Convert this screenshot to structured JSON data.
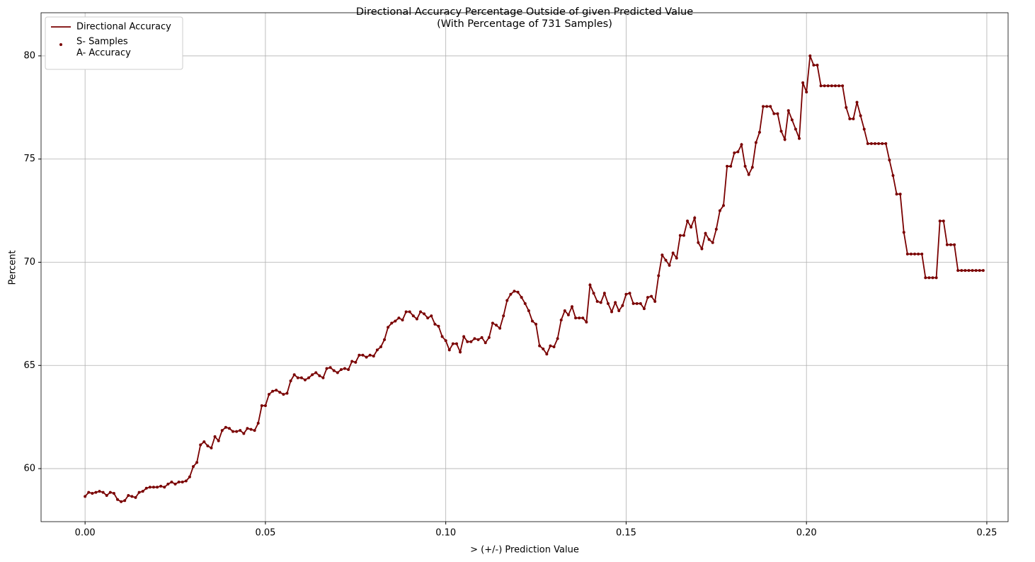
{
  "chart_data": {
    "type": "line",
    "title": "Directional Accuracy Percentage Outside of given Predicted Value",
    "subtitle": "(With Percentage of 731 Samples)",
    "x_label": "> (+/-) Prediction Value",
    "y_label": "Percent",
    "xlim": [
      -0.0122,
      0.2559
    ],
    "ylim": [
      57.43,
      82.09
    ],
    "xticks": [
      {
        "value": 0,
        "label": "0.00"
      },
      {
        "value": 0.05,
        "label": "0.05"
      },
      {
        "value": 0.1,
        "label": "0.10"
      },
      {
        "value": 0.15,
        "label": "0.15"
      },
      {
        "value": 0.2,
        "label": "0.20"
      },
      {
        "value": 0.25,
        "label": "0.25"
      }
    ],
    "yticks": [
      60,
      65,
      70,
      75,
      80
    ],
    "grid": true,
    "legend": "upper-left",
    "marker_legend": [
      "S- Samples",
      "A- Accuracy"
    ],
    "x": [
      0,
      0.001,
      0.002,
      0.003,
      0.004,
      0.005,
      0.006,
      0.007,
      0.008,
      0.009,
      0.01,
      0.011,
      0.012,
      0.013,
      0.014,
      0.015,
      0.016,
      0.017,
      0.018,
      0.019,
      0.02,
      0.021,
      0.022,
      0.023,
      0.024,
      0.025,
      0.026,
      0.027,
      0.028,
      0.029,
      0.03,
      0.031,
      0.032,
      0.033,
      0.034,
      0.035,
      0.036,
      0.037,
      0.038,
      0.039,
      0.04,
      0.041,
      0.042,
      0.043,
      0.044,
      0.045,
      0.046,
      0.047,
      0.048,
      0.049,
      0.05,
      0.051,
      0.052,
      0.053,
      0.054,
      0.055,
      0.056,
      0.057,
      0.058,
      0.059,
      0.06,
      0.061,
      0.062,
      0.063,
      0.064,
      0.065,
      0.066,
      0.067,
      0.068,
      0.069,
      0.07,
      0.071,
      0.072,
      0.073,
      0.074,
      0.075,
      0.076,
      0.077,
      0.078,
      0.079,
      0.08,
      0.081,
      0.082,
      0.083,
      0.084,
      0.085,
      0.086,
      0.087,
      0.088,
      0.089,
      0.09,
      0.091,
      0.092,
      0.093,
      0.094,
      0.095,
      0.096,
      0.097,
      0.098,
      0.099,
      0.1,
      0.101,
      0.102,
      0.103,
      0.104,
      0.105,
      0.106,
      0.107,
      0.108,
      0.109,
      0.11,
      0.111,
      0.112,
      0.113,
      0.114,
      0.115,
      0.116,
      0.117,
      0.118,
      0.119,
      0.12,
      0.121,
      0.122,
      0.123,
      0.124,
      0.125,
      0.126,
      0.127,
      0.128,
      0.129,
      0.13,
      0.131,
      0.132,
      0.133,
      0.134,
      0.135,
      0.136,
      0.137,
      0.138,
      0.139,
      0.14,
      0.141,
      0.142,
      0.143,
      0.144,
      0.145,
      0.146,
      0.147,
      0.148,
      0.149,
      0.15,
      0.151,
      0.152,
      0.153,
      0.154,
      0.155,
      0.156,
      0.157,
      0.158,
      0.159,
      0.16,
      0.161,
      0.162,
      0.163,
      0.164,
      0.165,
      0.166,
      0.167,
      0.168,
      0.169,
      0.17,
      0.171,
      0.172,
      0.173,
      0.174,
      0.175,
      0.176,
      0.177,
      0.178,
      0.179,
      0.18,
      0.181,
      0.182,
      0.183,
      0.184,
      0.185,
      0.186,
      0.187,
      0.188,
      0.189,
      0.19,
      0.191,
      0.192,
      0.193,
      0.194,
      0.195,
      0.196,
      0.197,
      0.198,
      0.199,
      0.2,
      0.201,
      0.202,
      0.203,
      0.204,
      0.205,
      0.206,
      0.207,
      0.208,
      0.209,
      0.21,
      0.211,
      0.212,
      0.213,
      0.214,
      0.215,
      0.216,
      0.217,
      0.218,
      0.219,
      0.22,
      0.221,
      0.222,
      0.223,
      0.224,
      0.225,
      0.226,
      0.227,
      0.228,
      0.229,
      0.23,
      0.231,
      0.232,
      0.233,
      0.234,
      0.235,
      0.236,
      0.237,
      0.238,
      0.239,
      0.24,
      0.241,
      0.242,
      0.243,
      0.244,
      0.245,
      0.246,
      0.247,
      0.248,
      0.249
    ],
    "series": [
      {
        "name": "Directional Accuracy",
        "color": "#7a0000",
        "values": [
          58.65,
          58.85,
          58.8,
          58.85,
          58.9,
          58.85,
          58.7,
          58.85,
          58.8,
          58.5,
          58.4,
          58.45,
          58.7,
          58.65,
          58.6,
          58.85,
          58.9,
          59.05,
          59.1,
          59.1,
          59.1,
          59.15,
          59.1,
          59.25,
          59.35,
          59.25,
          59.35,
          59.35,
          59.4,
          59.6,
          60.1,
          60.3,
          61.15,
          61.3,
          61.1,
          61.0,
          61.55,
          61.35,
          61.85,
          62.0,
          61.95,
          61.8,
          61.8,
          61.85,
          61.7,
          61.95,
          61.9,
          61.85,
          62.2,
          63.05,
          63.05,
          63.6,
          63.75,
          63.8,
          63.7,
          63.6,
          63.65,
          64.25,
          64.55,
          64.4,
          64.4,
          64.3,
          64.4,
          64.55,
          64.65,
          64.5,
          64.4,
          64.85,
          64.9,
          64.75,
          64.65,
          64.8,
          64.85,
          64.8,
          65.2,
          65.15,
          65.5,
          65.5,
          65.4,
          65.5,
          65.45,
          65.75,
          65.9,
          66.25,
          66.85,
          67.05,
          67.15,
          67.3,
          67.2,
          67.6,
          67.6,
          67.4,
          67.25,
          67.6,
          67.5,
          67.3,
          67.4,
          67.0,
          66.9,
          66.4,
          66.2,
          65.75,
          66.05,
          66.05,
          65.65,
          66.4,
          66.15,
          66.15,
          66.3,
          66.25,
          66.35,
          66.1,
          66.35,
          67.05,
          66.95,
          66.8,
          67.4,
          68.15,
          68.45,
          68.6,
          68.55,
          68.3,
          68.0,
          67.65,
          67.15,
          67.0,
          65.95,
          65.8,
          65.55,
          65.95,
          65.9,
          66.3,
          67.2,
          67.65,
          67.45,
          67.85,
          67.3,
          67.3,
          67.3,
          67.1,
          68.9,
          68.5,
          68.1,
          68.05,
          68.5,
          68.0,
          67.6,
          68.05,
          67.65,
          67.9,
          68.45,
          68.5,
          68.0,
          68.0,
          68.0,
          67.75,
          68.3,
          68.35,
          68.1,
          69.35,
          70.35,
          70.1,
          69.85,
          70.45,
          70.2,
          71.3,
          71.3,
          72.0,
          71.7,
          72.15,
          70.95,
          70.65,
          71.4,
          71.1,
          70.95,
          71.6,
          72.5,
          72.75,
          74.65,
          74.65,
          75.3,
          75.35,
          75.7,
          74.65,
          74.25,
          74.6,
          75.8,
          76.3,
          77.55,
          77.55,
          77.55,
          77.2,
          77.2,
          76.35,
          75.95,
          77.35,
          76.9,
          76.45,
          76.0,
          78.7,
          78.25,
          80.0,
          79.55,
          79.55,
          78.55,
          78.55,
          78.55,
          78.55,
          78.55,
          78.55,
          78.55,
          77.5,
          76.95,
          76.95,
          77.75,
          77.1,
          76.45,
          75.75,
          75.75,
          75.75,
          75.75,
          75.75,
          75.75,
          74.95,
          74.2,
          73.3,
          73.3,
          71.45,
          70.4,
          70.4,
          70.4,
          70.4,
          70.4,
          69.25,
          69.25,
          69.25,
          69.25,
          72.0,
          72.0,
          70.85,
          70.85,
          70.85,
          69.6,
          69.6,
          69.6,
          69.6,
          69.6,
          69.6,
          69.6,
          69.6
        ]
      }
    ]
  }
}
